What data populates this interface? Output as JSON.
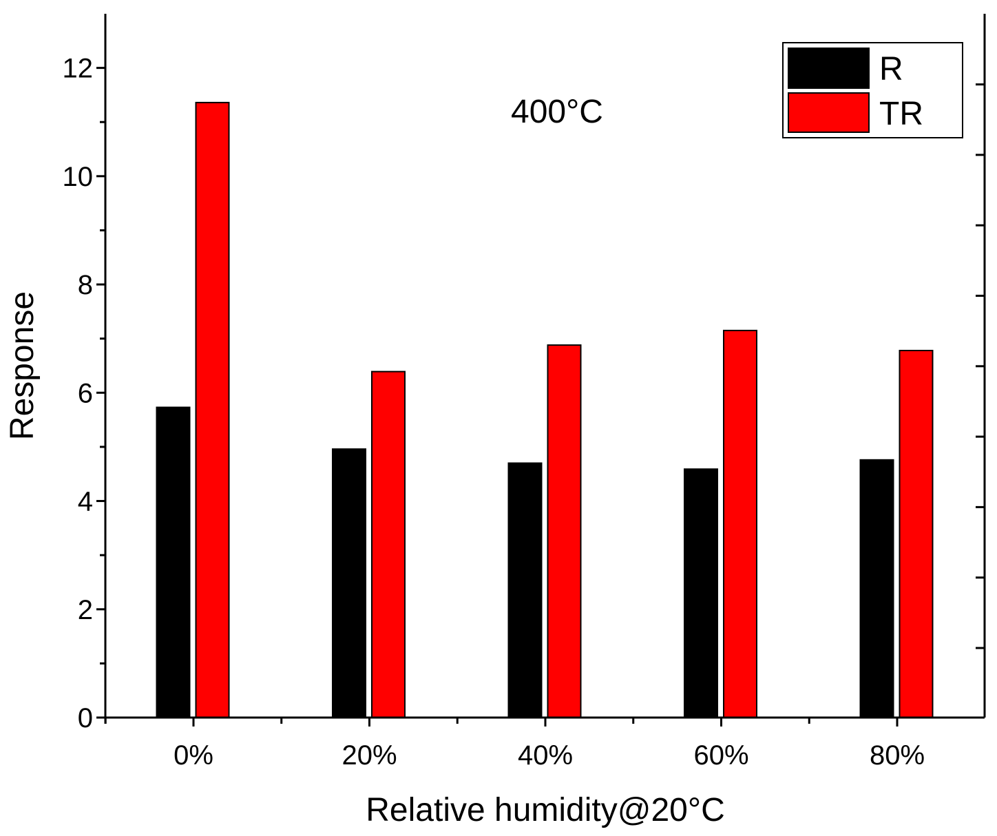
{
  "chart_data": {
    "type": "bar",
    "title": "",
    "annotation": "400°C",
    "xlabel": "Relative humidity@20°C",
    "ylabel": "Response",
    "ylim": [
      0,
      13
    ],
    "yticks": [
      0,
      2,
      4,
      6,
      8,
      10,
      12
    ],
    "ytick_labels": [
      "0",
      "2",
      "4",
      "6",
      "8",
      "10",
      "12"
    ],
    "categories": [
      "0%",
      "20%",
      "40%",
      "60%",
      "80%"
    ],
    "series": [
      {
        "name": "R",
        "color": "#000000",
        "values": [
          5.73,
          4.96,
          4.7,
          4.59,
          4.76
        ]
      },
      {
        "name": "TR",
        "color": "#ff0000",
        "values": [
          11.36,
          6.39,
          6.88,
          7.15,
          6.78
        ]
      }
    ],
    "legend_position": "top-right",
    "grid": false
  }
}
